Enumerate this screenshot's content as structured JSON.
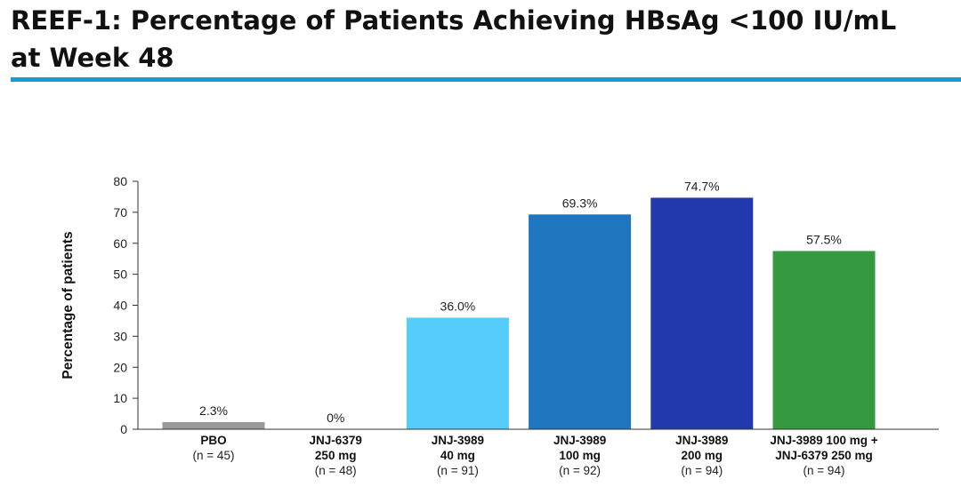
{
  "slide": {
    "title_line1": "REEF-1: Percentage of Patients Achieving HBsAg <100 IU/mL",
    "title_line2": "at Week 48",
    "accent_color": "#1a9ad6"
  },
  "chart_data": {
    "type": "bar",
    "title": "",
    "xlabel": "",
    "ylabel": "Percentage of patients",
    "ylim": [
      0,
      80
    ],
    "yticks": [
      0,
      10,
      20,
      30,
      40,
      50,
      60,
      70,
      80
    ],
    "grid": false,
    "categories": [
      {
        "lines": [
          "PBO"
        ],
        "n": "(n = 45)"
      },
      {
        "lines": [
          "JNJ-6379",
          "250 mg"
        ],
        "n": "(n = 48)"
      },
      {
        "lines": [
          "JNJ-3989",
          "40 mg"
        ],
        "n": "(n = 91)"
      },
      {
        "lines": [
          "JNJ-3989",
          "100 mg"
        ],
        "n": "(n = 92)"
      },
      {
        "lines": [
          "JNJ-3989",
          "200 mg"
        ],
        "n": "(n = 94)"
      },
      {
        "lines": [
          "JNJ-3989 100 mg +",
          "JNJ-6379 250 mg"
        ],
        "n": "(n = 94)"
      }
    ],
    "values": [
      2.3,
      0,
      36.0,
      69.3,
      74.7,
      57.5
    ],
    "value_labels": [
      "2.3%",
      "0%",
      "36.0%",
      "69.3%",
      "74.7%",
      "57.5%"
    ],
    "colors": [
      "#9a9a9a",
      "#9a9a9a",
      "#55ccfb",
      "#1f76bf",
      "#2238ad",
      "#36993f"
    ]
  }
}
